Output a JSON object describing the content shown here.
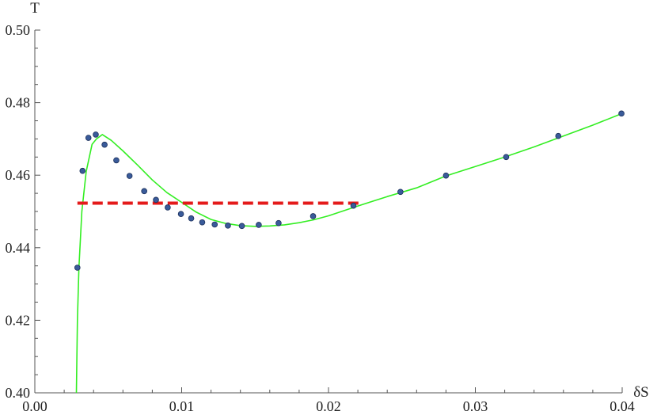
{
  "chart_data": {
    "type": "line",
    "title": "",
    "xlabel": "δS",
    "ylabel": "T",
    "xlim": [
      0.0,
      0.04
    ],
    "ylim": [
      0.4,
      0.5
    ],
    "grid": false,
    "x_ticks": [
      {
        "value": 0.0,
        "label": "0.00"
      },
      {
        "value": 0.01,
        "label": "0.01"
      },
      {
        "value": 0.02,
        "label": "0.02"
      },
      {
        "value": 0.03,
        "label": "0.03"
      },
      {
        "value": 0.04,
        "label": "0.04"
      }
    ],
    "y_ticks": [
      {
        "value": 0.4,
        "label": "0.40"
      },
      {
        "value": 0.42,
        "label": "0.42"
      },
      {
        "value": 0.44,
        "label": "0.44"
      },
      {
        "value": 0.46,
        "label": "0.46"
      },
      {
        "value": 0.48,
        "label": "0.48"
      },
      {
        "value": 0.5,
        "label": "0.50"
      }
    ],
    "series": [
      {
        "kind": "curve",
        "color": "#33ee22",
        "points": [
          [
            0.00283,
            0.4
          ],
          [
            0.0029,
            0.42
          ],
          [
            0.003,
            0.4345
          ],
          [
            0.0032,
            0.45
          ],
          [
            0.0035,
            0.461
          ],
          [
            0.0039,
            0.4685
          ],
          [
            0.0042,
            0.47
          ],
          [
            0.0046,
            0.4712
          ],
          [
            0.0052,
            0.4696
          ],
          [
            0.006,
            0.4667
          ],
          [
            0.007,
            0.4628
          ],
          [
            0.008,
            0.4587
          ],
          [
            0.009,
            0.4552
          ],
          [
            0.01,
            0.4525
          ],
          [
            0.011,
            0.4498
          ],
          [
            0.012,
            0.4478
          ],
          [
            0.013,
            0.4467
          ],
          [
            0.014,
            0.4461
          ],
          [
            0.015,
            0.4459
          ],
          [
            0.016,
            0.446
          ],
          [
            0.017,
            0.4463
          ],
          [
            0.018,
            0.4469
          ],
          [
            0.019,
            0.4477
          ],
          [
            0.02,
            0.4488
          ],
          [
            0.022,
            0.4515
          ],
          [
            0.024,
            0.4541
          ],
          [
            0.026,
            0.4565
          ],
          [
            0.028,
            0.4598
          ],
          [
            0.03,
            0.4624
          ],
          [
            0.032,
            0.465
          ],
          [
            0.034,
            0.4678
          ],
          [
            0.036,
            0.4708
          ],
          [
            0.038,
            0.4738
          ],
          [
            0.04,
            0.477
          ]
        ]
      },
      {
        "kind": "points",
        "color": "#3a5b9a",
        "edge_color": "#1b2f5a",
        "points": [
          [
            0.0029,
            0.4345
          ],
          [
            0.00325,
            0.4612
          ],
          [
            0.00365,
            0.4703
          ],
          [
            0.00415,
            0.4712
          ],
          [
            0.00475,
            0.4684
          ],
          [
            0.00555,
            0.4641
          ],
          [
            0.00645,
            0.4598
          ],
          [
            0.00745,
            0.4556
          ],
          [
            0.00825,
            0.4532
          ],
          [
            0.00905,
            0.4511
          ],
          [
            0.00995,
            0.4493
          ],
          [
            0.01065,
            0.4481
          ],
          [
            0.0114,
            0.447
          ],
          [
            0.01225,
            0.4464
          ],
          [
            0.01315,
            0.4461
          ],
          [
            0.0141,
            0.446
          ],
          [
            0.01525,
            0.4463
          ],
          [
            0.0166,
            0.4468
          ],
          [
            0.01895,
            0.4487
          ],
          [
            0.0217,
            0.4516
          ],
          [
            0.0249,
            0.4554
          ],
          [
            0.028,
            0.4599
          ],
          [
            0.0321,
            0.465
          ],
          [
            0.03565,
            0.4708
          ],
          [
            0.03995,
            0.477
          ]
        ]
      },
      {
        "kind": "dashed",
        "color": "#e41a1a",
        "points": [
          [
            0.0029,
            0.4523
          ],
          [
            0.0222,
            0.4523
          ]
        ]
      }
    ]
  }
}
